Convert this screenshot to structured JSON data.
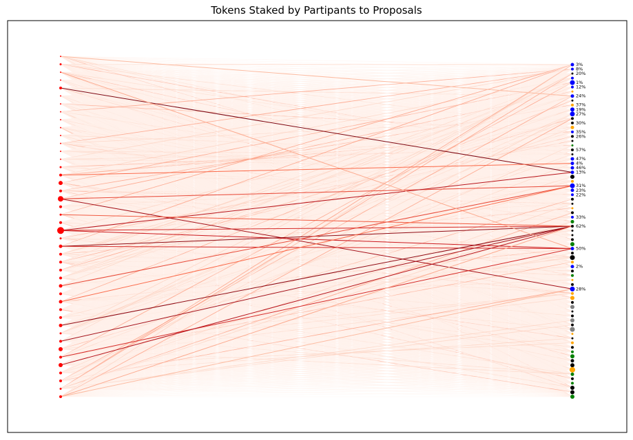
{
  "chart_data": {
    "type": "network",
    "title": "Tokens Staked by Partipants to Proposals",
    "xlabel": "",
    "ylabel": "",
    "grid": false,
    "edge_colormap": [
      "#fff5f0",
      "#fcbba1",
      "#fb6a4a",
      "#cb181d",
      "#67000d"
    ],
    "participant_color": "#ff0000",
    "participants": [
      {
        "size": 1
      },
      {
        "size": 1.5
      },
      {
        "size": 1
      },
      {
        "size": 1
      },
      {
        "size": 2
      },
      {
        "size": 1
      },
      {
        "size": 1
      },
      {
        "size": 1
      },
      {
        "size": 1
      },
      {
        "size": 1
      },
      {
        "size": 1
      },
      {
        "size": 1
      },
      {
        "size": 1
      },
      {
        "size": 1
      },
      {
        "size": 1.5
      },
      {
        "size": 2
      },
      {
        "size": 3
      },
      {
        "size": 2
      },
      {
        "size": 4
      },
      {
        "size": 2
      },
      {
        "size": 1.5
      },
      {
        "size": 2
      },
      {
        "size": 5
      },
      {
        "size": 1.5
      },
      {
        "size": 2.5
      },
      {
        "size": 2
      },
      {
        "size": 2
      },
      {
        "size": 2
      },
      {
        "size": 2
      },
      {
        "size": 2.5
      },
      {
        "size": 2
      },
      {
        "size": 2.5
      },
      {
        "size": 2
      },
      {
        "size": 2
      },
      {
        "size": 2.5
      },
      {
        "size": 1.5
      },
      {
        "size": 2
      },
      {
        "size": 3
      },
      {
        "size": 2
      },
      {
        "size": 3
      },
      {
        "size": 2
      },
      {
        "size": 2
      },
      {
        "size": 1.5
      },
      {
        "size": 2
      }
    ],
    "proposal_status_colors": {
      "candidate": "#0000ff",
      "active": "#ffa500",
      "completed": "#008000",
      "failed": "#808080",
      "killed": "#000000"
    },
    "proposals": [
      {
        "status": "candidate",
        "size": 2.5,
        "label": "3%"
      },
      {
        "status": "candidate",
        "size": 2,
        "label": "8%"
      },
      {
        "status": "killed",
        "size": 1.5,
        "label": "20%"
      },
      {
        "status": "candidate",
        "size": 2,
        "label": ""
      },
      {
        "status": "candidate",
        "size": 3.5,
        "label": "1%"
      },
      {
        "status": "candidate",
        "size": 2,
        "label": "12%"
      },
      {
        "status": "active",
        "size": 1.5,
        "label": ""
      },
      {
        "status": "candidate",
        "size": 2.5,
        "label": "24%"
      },
      {
        "status": "killed",
        "size": 1.5,
        "label": ""
      },
      {
        "status": "active",
        "size": 2,
        "label": "37%"
      },
      {
        "status": "candidate",
        "size": 3,
        "label": "19%"
      },
      {
        "status": "candidate",
        "size": 3.5,
        "label": "27%"
      },
      {
        "status": "killed",
        "size": 2,
        "label": ""
      },
      {
        "status": "killed",
        "size": 2,
        "label": "30%"
      },
      {
        "status": "active",
        "size": 2.5,
        "label": ""
      },
      {
        "status": "candidate",
        "size": 2,
        "label": "35%"
      },
      {
        "status": "killed",
        "size": 2,
        "label": "26%"
      },
      {
        "status": "killed",
        "size": 1.5,
        "label": ""
      },
      {
        "status": "completed",
        "size": 1.5,
        "label": ""
      },
      {
        "status": "killed",
        "size": 2,
        "label": "57%"
      },
      {
        "status": "killed",
        "size": 1.5,
        "label": ""
      },
      {
        "status": "candidate",
        "size": 2.5,
        "label": "47%"
      },
      {
        "status": "candidate",
        "size": 2.5,
        "label": "4%"
      },
      {
        "status": "candidate",
        "size": 2.5,
        "label": "46%"
      },
      {
        "status": "candidate",
        "size": 2.5,
        "label": "13%"
      },
      {
        "status": "killed",
        "size": 3,
        "label": ""
      },
      {
        "status": "active",
        "size": 2,
        "label": ""
      },
      {
        "status": "candidate",
        "size": 3.5,
        "label": "31%"
      },
      {
        "status": "candidate",
        "size": 2.5,
        "label": "23%"
      },
      {
        "status": "candidate",
        "size": 2,
        "label": "22%"
      },
      {
        "status": "killed",
        "size": 2,
        "label": ""
      },
      {
        "status": "killed",
        "size": 1.5,
        "label": ""
      },
      {
        "status": "active",
        "size": 1.5,
        "label": ""
      },
      {
        "status": "killed",
        "size": 2,
        "label": ""
      },
      {
        "status": "candidate",
        "size": 2,
        "label": "33%"
      },
      {
        "status": "completed",
        "size": 2.5,
        "label": ""
      },
      {
        "status": "killed",
        "size": 2,
        "label": "62%"
      },
      {
        "status": "killed",
        "size": 1.5,
        "label": ""
      },
      {
        "status": "killed",
        "size": 1.5,
        "label": ""
      },
      {
        "status": "killed",
        "size": 2,
        "label": ""
      },
      {
        "status": "completed",
        "size": 3,
        "label": ""
      },
      {
        "status": "candidate",
        "size": 2.5,
        "label": "50%"
      },
      {
        "status": "killed",
        "size": 2,
        "label": ""
      },
      {
        "status": "killed",
        "size": 3.5,
        "label": ""
      },
      {
        "status": "active",
        "size": 2,
        "label": ""
      },
      {
        "status": "candidate",
        "size": 2.5,
        "label": "2%"
      },
      {
        "status": "killed",
        "size": 2,
        "label": ""
      },
      {
        "status": "completed",
        "size": 2,
        "label": ""
      },
      {
        "status": "active",
        "size": 1.5,
        "label": ""
      },
      {
        "status": "killed",
        "size": 2,
        "label": ""
      },
      {
        "status": "candidate",
        "size": 3.5,
        "label": "28%"
      },
      {
        "status": "active",
        "size": 2,
        "label": ""
      },
      {
        "status": "active",
        "size": 3,
        "label": ""
      },
      {
        "status": "killed",
        "size": 2,
        "label": ""
      },
      {
        "status": "failed",
        "size": 3,
        "label": ""
      },
      {
        "status": "killed",
        "size": 1.5,
        "label": ""
      },
      {
        "status": "killed",
        "size": 2,
        "label": ""
      },
      {
        "status": "failed",
        "size": 3,
        "label": ""
      },
      {
        "status": "killed",
        "size": 2,
        "label": ""
      },
      {
        "status": "failed",
        "size": 3.5,
        "label": ""
      },
      {
        "status": "active",
        "size": 1.5,
        "label": ""
      },
      {
        "status": "killed",
        "size": 1.5,
        "label": ""
      },
      {
        "status": "active",
        "size": 2,
        "label": ""
      },
      {
        "status": "killed",
        "size": 2,
        "label": ""
      },
      {
        "status": "completed",
        "size": 2,
        "label": ""
      },
      {
        "status": "completed",
        "size": 3,
        "label": ""
      },
      {
        "status": "killed",
        "size": 2.5,
        "label": ""
      },
      {
        "status": "killed",
        "size": 3,
        "label": ""
      },
      {
        "status": "active",
        "size": 4,
        "label": ""
      },
      {
        "status": "completed",
        "size": 2.5,
        "label": ""
      },
      {
        "status": "killed",
        "size": 2,
        "label": ""
      },
      {
        "status": "completed",
        "size": 2,
        "label": ""
      },
      {
        "status": "killed",
        "size": 3,
        "label": ""
      },
      {
        "status": "killed",
        "size": 3,
        "label": ""
      },
      {
        "status": "completed",
        "size": 3,
        "label": ""
      }
    ],
    "highlight_edges": [
      {
        "from": 18,
        "to": 50,
        "intensity": 0.85
      },
      {
        "from": 18,
        "to": 27,
        "intensity": 0.6
      },
      {
        "from": 22,
        "to": 24,
        "intensity": 0.8
      },
      {
        "from": 22,
        "to": 36,
        "intensity": 0.7
      },
      {
        "from": 22,
        "to": 41,
        "intensity": 0.75
      },
      {
        "from": 24,
        "to": 36,
        "intensity": 0.9
      },
      {
        "from": 24,
        "to": 41,
        "intensity": 0.7
      },
      {
        "from": 29,
        "to": 27,
        "intensity": 0.6
      },
      {
        "from": 34,
        "to": 36,
        "intensity": 0.9
      },
      {
        "from": 36,
        "to": 36,
        "intensity": 0.85
      },
      {
        "from": 38,
        "to": 41,
        "intensity": 0.7
      },
      {
        "from": 39,
        "to": 36,
        "intensity": 0.8
      },
      {
        "from": 4,
        "to": 24,
        "intensity": 0.95
      },
      {
        "from": 2,
        "to": 41,
        "intensity": 0.3
      },
      {
        "from": 43,
        "to": 50,
        "intensity": 0.25
      },
      {
        "from": 43,
        "to": 36,
        "intensity": 0.3
      },
      {
        "from": 0,
        "to": 7,
        "intensity": 0.25
      },
      {
        "from": 20,
        "to": 36,
        "intensity": 0.55
      },
      {
        "from": 15,
        "to": 22,
        "intensity": 0.5
      },
      {
        "from": 31,
        "to": 27,
        "intensity": 0.5
      }
    ]
  }
}
